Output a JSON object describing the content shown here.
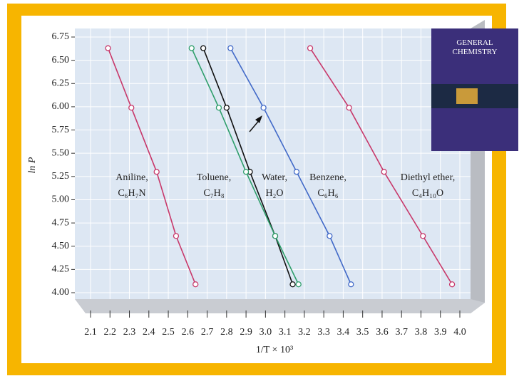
{
  "cover_title": "GENERAL CHEMISTRY",
  "chart_data": {
    "type": "line",
    "x_label": "1/T × 10³",
    "y_label": "ln P",
    "xlim": [
      2.1,
      4.0
    ],
    "ylim": [
      4.0,
      6.75
    ],
    "xticks": [
      2.1,
      2.2,
      2.3,
      2.4,
      2.5,
      2.6,
      2.7,
      2.8,
      2.9,
      {
        "value": 3,
        "label": "3.0"
      },
      3.1,
      3.2,
      3.3,
      3.4,
      3.5,
      3.6,
      3.7,
      3.8,
      3.9,
      {
        "value": 4,
        "label": "4.0"
      }
    ],
    "yticks": [
      {
        "value": 4,
        "label": "4.00"
      },
      {
        "value": 4.25,
        "label": "4.25"
      },
      {
        "value": 4.5,
        "label": "4.50"
      },
      {
        "value": 4.75,
        "label": "4.75"
      },
      {
        "value": 5,
        "label": "5.00"
      },
      {
        "value": 5.25,
        "label": "5.25"
      },
      {
        "value": 5.5,
        "label": "5.50"
      },
      {
        "value": 5.75,
        "label": "5.75"
      },
      {
        "value": 6,
        "label": "6.00"
      },
      {
        "value": 6.25,
        "label": "6.25"
      },
      {
        "value": 6.5,
        "label": "6.50"
      },
      {
        "value": 6.75,
        "label": "6.75"
      }
    ],
    "grid": true,
    "series": [
      {
        "name": "Aniline, C₆H₇N",
        "color": "#c8386a",
        "x": [
          2.19,
          2.31,
          2.44,
          2.54,
          2.64
        ],
        "values": [
          6.63,
          5.99,
          5.3,
          4.61,
          4.09
        ]
      },
      {
        "name": "Toluene, C₇H₈",
        "color": "#111111",
        "x": [
          2.68,
          2.8,
          2.92,
          3.05,
          3.14
        ],
        "values": [
          6.63,
          5.99,
          5.3,
          4.61,
          4.09
        ]
      },
      {
        "name": "Water, H₂O",
        "color": "#2e9e6b",
        "x": [
          2.62,
          2.76,
          2.9,
          3.05,
          3.17
        ],
        "values": [
          6.63,
          5.99,
          5.3,
          4.61,
          4.09
        ]
      },
      {
        "name": "Benzene, C₆H₆",
        "color": "#4169c8",
        "x": [
          2.82,
          2.99,
          3.16,
          3.33,
          3.44
        ],
        "values": [
          6.63,
          5.99,
          5.3,
          4.61,
          4.09
        ]
      },
      {
        "name": "Diethyl ether, C₄H₁₀O",
        "color": "#c8386a",
        "x": [
          3.23,
          3.43,
          3.61,
          3.81,
          3.96
        ],
        "values": [
          6.63,
          5.99,
          5.3,
          4.61,
          4.09
        ]
      }
    ]
  }
}
